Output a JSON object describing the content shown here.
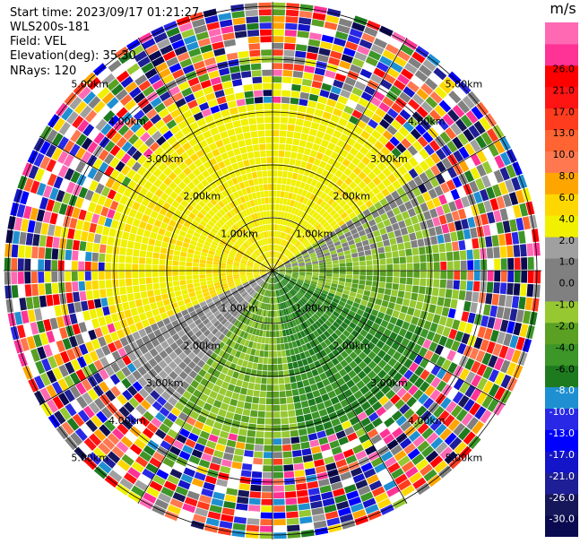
{
  "header": {
    "start_time": "Start time: 2023/09/17 01:21:27",
    "instrument": "WLS200s-181",
    "field": "Field: VEL",
    "elevation": "Elevation(deg): 35.30",
    "nrays": "NRays: 120"
  },
  "ppi": {
    "nrays": 120,
    "range_ring_labels": [
      "1.00km",
      "2.00km",
      "3.00km",
      "4.00km",
      "5.00km"
    ],
    "range_rings_km": [
      1,
      2,
      3,
      4,
      5
    ]
  },
  "colorbar": {
    "unit": "m/s",
    "colors": [
      "#0a0a50",
      "#16165a",
      "#1e1e96",
      "#1414c8",
      "#0000ff",
      "#2828e6",
      "#1e90d2",
      "#1e7a1e",
      "#3c9628",
      "#5aa023",
      "#96c832",
      "#808080",
      "#808080",
      "#a0a0a0",
      "#f0f000",
      "#ffd700",
      "#ffa500",
      "#ff7850",
      "#ff6432",
      "#ff3c1e",
      "#ff1414",
      "#ff0000",
      "#ff3296",
      "#ff69b4"
    ],
    "labels": [
      "-30.0",
      "-26.0",
      "-21.0",
      "-17.0",
      "-13.0",
      "-10.0",
      "-8.0",
      "-6.0",
      "-4.0",
      "-2.0",
      "-1.0",
      "0.0",
      "1.0",
      "2.0",
      "4.0",
      "6.0",
      "8.0",
      "10.0",
      "13.0",
      "17.0",
      "21.0",
      "26.0"
    ]
  }
}
